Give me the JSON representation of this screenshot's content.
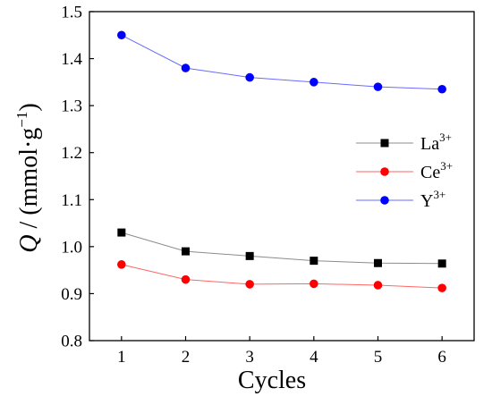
{
  "chart_data": {
    "type": "line",
    "title": "",
    "xlabel": "Cycles",
    "ylabel": {
      "var": "Q",
      "sep": " / (mmol·g",
      "exp": "−1",
      "close": ")"
    },
    "x": [
      1,
      2,
      3,
      4,
      5,
      6
    ],
    "xlim": [
      0.5,
      6.5
    ],
    "ylim": [
      0.8,
      1.5
    ],
    "xticks": [
      "1",
      "2",
      "3",
      "4",
      "5",
      "6"
    ],
    "yticks": [
      "0.8",
      "0.9",
      "1.0",
      "1.1",
      "1.2",
      "1.3",
      "1.4",
      "1.5"
    ],
    "grid": false,
    "legend_position": "right",
    "series": [
      {
        "name": "La",
        "name_sup": "3+",
        "color": "#000000",
        "line_color": "#8c8c8c",
        "marker": "square",
        "values": [
          1.03,
          0.99,
          0.98,
          0.97,
          0.965,
          0.964
        ]
      },
      {
        "name": "Ce",
        "name_sup": "3+",
        "color": "#ff0000",
        "line_color": "#ff6666",
        "marker": "circle",
        "values": [
          0.962,
          0.93,
          0.92,
          0.921,
          0.918,
          0.912
        ]
      },
      {
        "name": "Y",
        "name_sup": "3+",
        "color": "#0000ff",
        "line_color": "#6a6aff",
        "marker": "circle",
        "values": [
          1.45,
          1.38,
          1.36,
          1.35,
          1.34,
          1.335
        ]
      }
    ]
  }
}
